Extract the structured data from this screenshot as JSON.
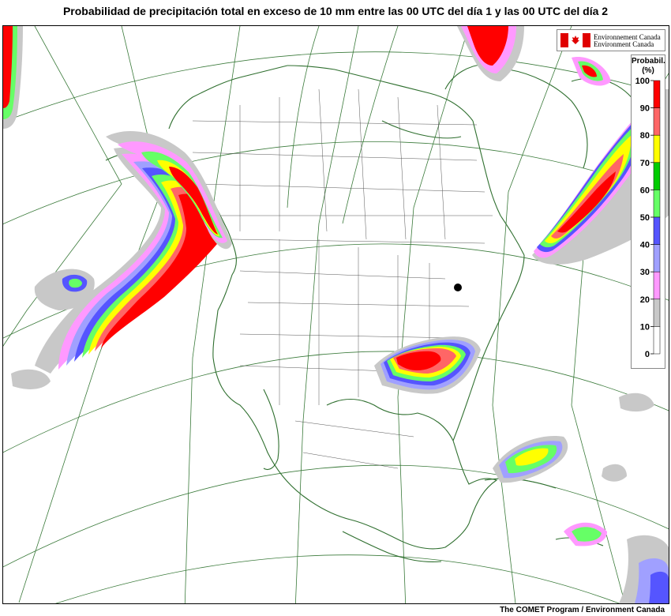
{
  "title": "Probabilidad de precipitación total en exceso de 10 mm entre las 00 UTC del día 1 y las 00 UTC del día 2",
  "logo": {
    "line1": "Environnement Canada",
    "line2": "Environment Canada"
  },
  "legend": {
    "title_line1": "Probabil.",
    "title_line2": "(%)",
    "ticks": [
      "100",
      "90",
      "80",
      "70",
      "60",
      "50",
      "40",
      "30",
      "20",
      "10",
      "0"
    ],
    "colors": [
      "#ff0000",
      "#ff6666",
      "#ffff00",
      "#00cc00",
      "#66ff66",
      "#5555ff",
      "#a0a0ff",
      "#ff99ff",
      "#c8c8c8",
      "#ffffff"
    ]
  },
  "credit": "The COMET Program / Environment Canada"
}
